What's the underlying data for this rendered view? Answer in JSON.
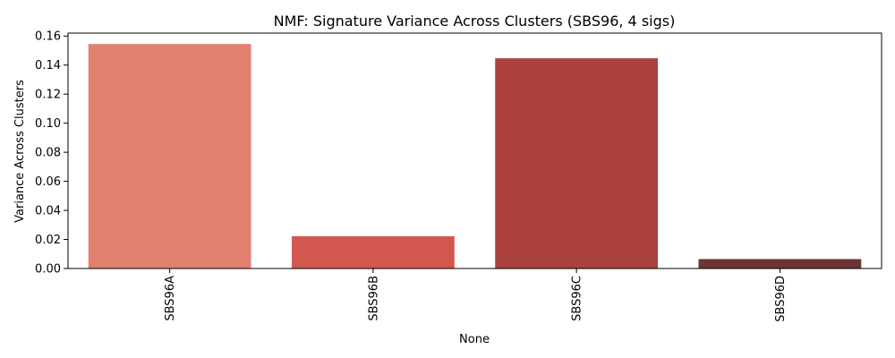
{
  "chart_data": {
    "type": "bar",
    "title": "NMF: Signature Variance Across Clusters (SBS96, 4 sigs)",
    "xlabel": "None",
    "ylabel": "Variance Across Clusters",
    "categories": [
      "SBS96A",
      "SBS96B",
      "SBS96C",
      "SBS96D"
    ],
    "values": [
      0.1545,
      0.0222,
      0.1447,
      0.0065
    ],
    "colors": [
      "#E28070",
      "#D2574F",
      "#AC423E",
      "#6E3432"
    ],
    "ylim": [
      0,
      0.162
    ],
    "yticks": [
      0.0,
      0.02,
      0.04,
      0.06,
      0.08,
      0.1,
      0.12,
      0.14,
      0.16
    ],
    "ytick_labels": [
      "0.00",
      "0.02",
      "0.04",
      "0.06",
      "0.08",
      "0.10",
      "0.12",
      "0.14",
      "0.16"
    ],
    "grid": false,
    "x_tick_rotation": "vertical"
  }
}
